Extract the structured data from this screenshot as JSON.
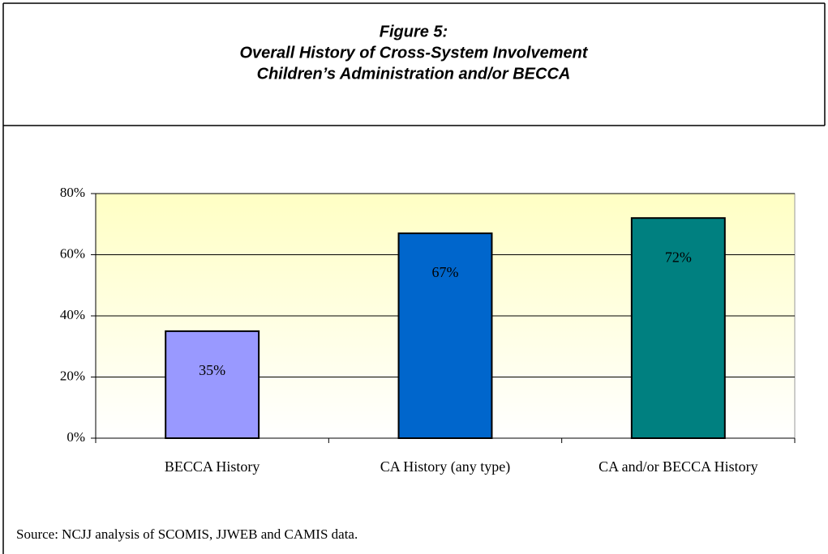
{
  "chart_data": {
    "type": "bar",
    "title": "Figure 5:",
    "subtitle": [
      "Overall History of Cross-System Involvement",
      "Children’s Administration and/or BECCA"
    ],
    "categories": [
      "BECCA History",
      "CA History (any type)",
      "CA and/or BECCA History"
    ],
    "values": [
      35,
      67,
      72
    ],
    "value_labels": [
      "35%",
      "67%",
      "72%"
    ],
    "colors": [
      "#9999ff",
      "#0066cc",
      "#008080"
    ],
    "ylim": [
      0,
      80
    ],
    "yticks": [
      {
        "value": 0,
        "label": "0%"
      },
      {
        "value": 20,
        "label": "20%"
      },
      {
        "value": 40,
        "label": "40%"
      },
      {
        "value": 60,
        "label": "60%"
      },
      {
        "value": 80,
        "label": "80%"
      }
    ],
    "grid": true,
    "source": "Source: NCJJ analysis of SCOMIS, JJWEB and CAMIS data."
  }
}
